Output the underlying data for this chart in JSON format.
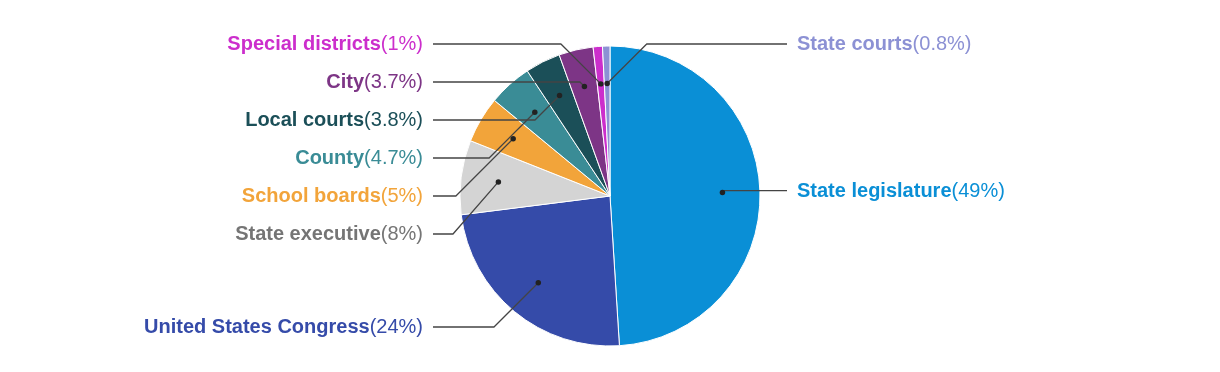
{
  "chart_data": {
    "type": "pie",
    "categories": [
      "State legislature",
      "United States Congress",
      "State executive",
      "School boards",
      "County",
      "Local courts",
      "City",
      "Special districts",
      "State courts"
    ],
    "values": [
      49,
      24,
      8,
      5,
      4.7,
      3.8,
      3.7,
      1,
      0.8
    ],
    "colors": [
      "#0a8fd6",
      "#354ba9",
      "#d4d4d4",
      "#f2a43a",
      "#3a8c96",
      "#1b4f58",
      "#7d3586",
      "#cc2ecc",
      "#8c91d4"
    ],
    "value_labels": [
      "(49%)",
      "(24%)",
      "(8%)",
      "(5%)",
      "(4.7%)",
      "(3.8%)",
      "(3.7%)",
      "(1%)",
      "(0.8%)"
    ]
  }
}
